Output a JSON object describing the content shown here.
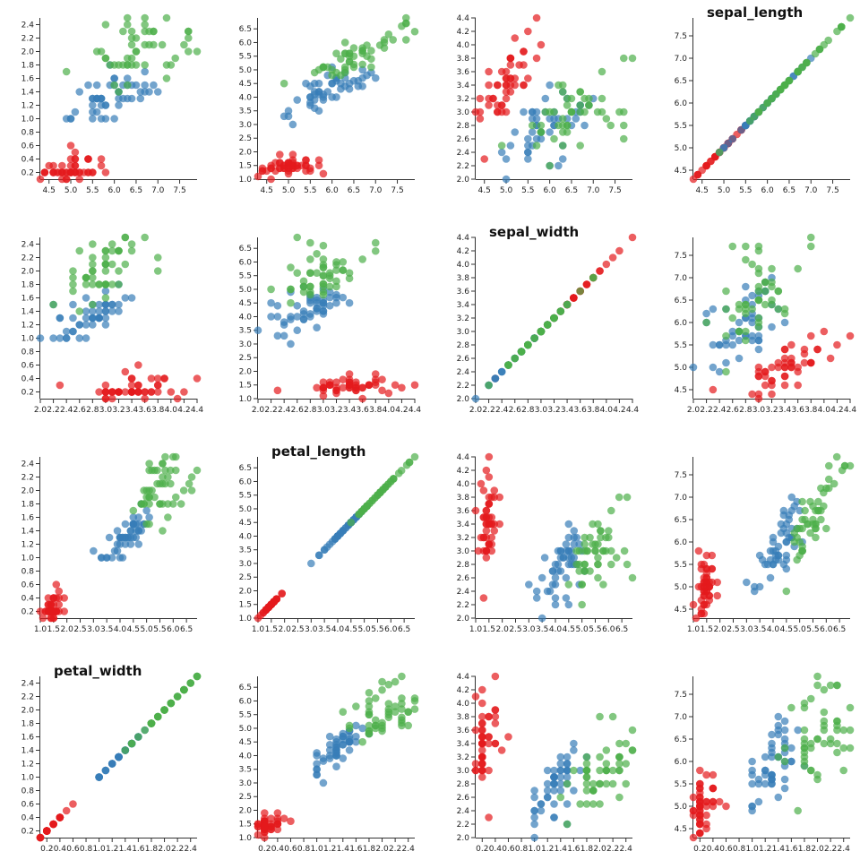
{
  "chart_data": {
    "type": "scatter-matrix",
    "dimensions": [
      {
        "name": "sepal_length",
        "lim": [
          4.3,
          7.9
        ],
        "ticks": [
          4.5,
          {
            "value": 5,
            "label": "5.0"
          },
          5.5,
          {
            "value": 6,
            "label": "6.0"
          },
          6.5,
          {
            "value": 7,
            "label": "7.0"
          },
          7.5
        ]
      },
      {
        "name": "sepal_width",
        "lim": [
          2.0,
          4.4
        ],
        "ticks": [
          {
            "value": 2,
            "label": "2.0"
          },
          2.2,
          2.4,
          2.6,
          2.8,
          {
            "value": 3,
            "label": "3.0"
          },
          3.2,
          3.4,
          3.6,
          3.8,
          {
            "value": 4,
            "label": "4.0"
          },
          4.2,
          4.4
        ]
      },
      {
        "name": "petal_length",
        "lim": [
          1.0,
          6.9
        ],
        "ticks": [
          {
            "value": 1,
            "label": "1.0"
          },
          1.5,
          {
            "value": 2,
            "label": "2.0"
          },
          2.5,
          {
            "value": 3,
            "label": "3.0"
          },
          3.5,
          {
            "value": 4,
            "label": "4.0"
          },
          4.5,
          {
            "value": 5,
            "label": "5.0"
          },
          5.5,
          {
            "value": 6,
            "label": "6.0"
          },
          6.5
        ]
      },
      {
        "name": "petal_width",
        "lim": [
          0.1,
          2.5
        ],
        "ticks": [
          0.2,
          0.4,
          0.6,
          0.8,
          {
            "value": 1,
            "label": "1.0"
          },
          1.2,
          1.4,
          1.6,
          1.8,
          {
            "value": 2,
            "label": "2.0"
          },
          2.2,
          2.4
        ]
      }
    ],
    "series": [
      {
        "color": "#e41a1c",
        "values": [
          [
            5.1,
            3.5,
            1.4,
            0.2
          ],
          [
            4.9,
            3.0,
            1.4,
            0.2
          ],
          [
            4.7,
            3.2,
            1.3,
            0.2
          ],
          [
            4.6,
            3.1,
            1.5,
            0.2
          ],
          [
            5.0,
            3.6,
            1.4,
            0.2
          ],
          [
            5.4,
            3.9,
            1.7,
            0.4
          ],
          [
            4.6,
            3.4,
            1.4,
            0.3
          ],
          [
            5.0,
            3.4,
            1.5,
            0.2
          ],
          [
            4.4,
            2.9,
            1.4,
            0.2
          ],
          [
            4.9,
            3.1,
            1.5,
            0.1
          ],
          [
            5.4,
            3.7,
            1.5,
            0.2
          ],
          [
            4.8,
            3.4,
            1.6,
            0.2
          ],
          [
            4.8,
            3.0,
            1.4,
            0.1
          ],
          [
            4.3,
            3.0,
            1.1,
            0.1
          ],
          [
            5.8,
            4.0,
            1.2,
            0.2
          ],
          [
            5.7,
            4.4,
            1.5,
            0.4
          ],
          [
            5.4,
            3.9,
            1.3,
            0.4
          ],
          [
            5.1,
            3.5,
            1.4,
            0.3
          ],
          [
            5.7,
            3.8,
            1.7,
            0.3
          ],
          [
            5.1,
            3.8,
            1.5,
            0.3
          ],
          [
            5.4,
            3.4,
            1.7,
            0.2
          ],
          [
            5.1,
            3.7,
            1.5,
            0.4
          ],
          [
            4.6,
            3.6,
            1.0,
            0.2
          ],
          [
            5.1,
            3.3,
            1.7,
            0.5
          ],
          [
            4.8,
            3.4,
            1.9,
            0.2
          ],
          [
            5.0,
            3.0,
            1.6,
            0.2
          ],
          [
            5.0,
            3.4,
            1.6,
            0.4
          ],
          [
            5.2,
            3.5,
            1.5,
            0.2
          ],
          [
            5.2,
            3.4,
            1.4,
            0.2
          ],
          [
            4.7,
            3.2,
            1.6,
            0.2
          ],
          [
            4.8,
            3.1,
            1.6,
            0.2
          ],
          [
            5.4,
            3.4,
            1.5,
            0.4
          ],
          [
            5.2,
            4.1,
            1.5,
            0.1
          ],
          [
            5.5,
            4.2,
            1.4,
            0.2
          ],
          [
            4.9,
            3.1,
            1.5,
            0.2
          ],
          [
            5.0,
            3.2,
            1.2,
            0.2
          ],
          [
            5.5,
            3.5,
            1.3,
            0.2
          ],
          [
            4.9,
            3.6,
            1.4,
            0.1
          ],
          [
            4.4,
            3.0,
            1.3,
            0.2
          ],
          [
            5.1,
            3.4,
            1.5,
            0.2
          ],
          [
            5.0,
            3.5,
            1.3,
            0.3
          ],
          [
            4.5,
            2.3,
            1.3,
            0.3
          ],
          [
            4.4,
            3.2,
            1.3,
            0.2
          ],
          [
            5.0,
            3.5,
            1.6,
            0.6
          ],
          [
            5.1,
            3.8,
            1.9,
            0.4
          ],
          [
            4.8,
            3.0,
            1.4,
            0.3
          ],
          [
            5.1,
            3.8,
            1.6,
            0.2
          ],
          [
            4.6,
            3.2,
            1.4,
            0.2
          ],
          [
            5.3,
            3.7,
            1.5,
            0.2
          ],
          [
            5.0,
            3.3,
            1.4,
            0.2
          ]
        ]
      },
      {
        "color": "#377eb8",
        "values": [
          [
            7.0,
            3.2,
            4.7,
            1.4
          ],
          [
            6.4,
            3.2,
            4.5,
            1.5
          ],
          [
            6.9,
            3.1,
            4.9,
            1.5
          ],
          [
            5.5,
            2.3,
            4.0,
            1.3
          ],
          [
            6.5,
            2.8,
            4.6,
            1.5
          ],
          [
            5.7,
            2.8,
            4.5,
            1.3
          ],
          [
            6.3,
            3.3,
            4.7,
            1.6
          ],
          [
            4.9,
            2.4,
            3.3,
            1.0
          ],
          [
            6.6,
            2.9,
            4.6,
            1.3
          ],
          [
            5.2,
            2.7,
            3.9,
            1.4
          ],
          [
            5.0,
            2.0,
            3.5,
            1.0
          ],
          [
            5.9,
            3.0,
            4.2,
            1.5
          ],
          [
            6.0,
            2.2,
            4.0,
            1.0
          ],
          [
            6.1,
            2.9,
            4.7,
            1.4
          ],
          [
            5.6,
            2.9,
            3.6,
            1.3
          ],
          [
            6.7,
            3.1,
            4.4,
            1.4
          ],
          [
            5.6,
            3.0,
            4.5,
            1.5
          ],
          [
            5.8,
            2.7,
            4.1,
            1.0
          ],
          [
            6.2,
            2.2,
            4.5,
            1.5
          ],
          [
            5.6,
            2.5,
            3.9,
            1.1
          ],
          [
            5.9,
            3.2,
            4.8,
            1.8
          ],
          [
            6.1,
            2.8,
            4.0,
            1.3
          ],
          [
            6.3,
            2.5,
            4.9,
            1.5
          ],
          [
            6.1,
            2.8,
            4.7,
            1.2
          ],
          [
            6.4,
            2.9,
            4.3,
            1.3
          ],
          [
            6.6,
            3.0,
            4.4,
            1.4
          ],
          [
            6.8,
            2.8,
            4.8,
            1.4
          ],
          [
            6.7,
            3.0,
            5.0,
            1.7
          ],
          [
            6.0,
            2.9,
            4.5,
            1.5
          ],
          [
            5.7,
            2.6,
            3.5,
            1.0
          ],
          [
            5.5,
            2.4,
            3.8,
            1.1
          ],
          [
            5.5,
            2.4,
            3.7,
            1.0
          ],
          [
            5.8,
            2.7,
            3.9,
            1.2
          ],
          [
            6.0,
            2.7,
            5.1,
            1.6
          ],
          [
            5.4,
            3.0,
            4.5,
            1.5
          ],
          [
            6.0,
            3.4,
            4.5,
            1.6
          ],
          [
            6.7,
            3.1,
            4.7,
            1.5
          ],
          [
            6.3,
            2.3,
            4.4,
            1.3
          ],
          [
            5.6,
            3.0,
            4.1,
            1.3
          ],
          [
            5.5,
            2.5,
            4.0,
            1.3
          ],
          [
            5.5,
            2.6,
            4.4,
            1.2
          ],
          [
            6.1,
            3.0,
            4.6,
            1.4
          ],
          [
            5.8,
            2.6,
            4.0,
            1.2
          ],
          [
            5.0,
            2.3,
            3.3,
            1.0
          ],
          [
            5.6,
            2.7,
            4.2,
            1.3
          ],
          [
            5.7,
            3.0,
            4.2,
            1.2
          ],
          [
            5.7,
            2.9,
            4.2,
            1.3
          ],
          [
            6.2,
            2.9,
            4.3,
            1.3
          ],
          [
            5.1,
            2.5,
            3.0,
            1.1
          ],
          [
            5.7,
            2.8,
            4.1,
            1.3
          ]
        ]
      },
      {
        "color": "#4daf4a",
        "values": [
          [
            6.3,
            3.3,
            6.0,
            2.5
          ],
          [
            5.8,
            2.7,
            5.1,
            1.9
          ],
          [
            7.1,
            3.0,
            5.9,
            2.1
          ],
          [
            6.3,
            2.9,
            5.6,
            1.8
          ],
          [
            6.5,
            3.0,
            5.8,
            2.2
          ],
          [
            7.6,
            3.0,
            6.6,
            2.1
          ],
          [
            4.9,
            2.5,
            4.5,
            1.7
          ],
          [
            7.3,
            2.9,
            6.3,
            1.8
          ],
          [
            6.7,
            2.5,
            5.8,
            1.8
          ],
          [
            7.2,
            3.6,
            6.1,
            2.5
          ],
          [
            6.5,
            3.2,
            5.1,
            2.0
          ],
          [
            6.4,
            2.7,
            5.3,
            1.9
          ],
          [
            6.8,
            3.0,
            5.5,
            2.1
          ],
          [
            5.7,
            2.5,
            5.0,
            2.0
          ],
          [
            5.8,
            2.8,
            5.1,
            2.4
          ],
          [
            6.4,
            3.2,
            5.3,
            2.3
          ],
          [
            6.5,
            3.0,
            5.5,
            1.8
          ],
          [
            7.7,
            3.8,
            6.7,
            2.2
          ],
          [
            7.7,
            2.6,
            6.9,
            2.3
          ],
          [
            6.0,
            2.2,
            5.0,
            1.5
          ],
          [
            6.9,
            3.2,
            5.7,
            2.3
          ],
          [
            5.6,
            2.8,
            4.9,
            2.0
          ],
          [
            7.7,
            2.8,
            6.7,
            2.0
          ],
          [
            6.3,
            2.7,
            4.9,
            1.8
          ],
          [
            6.7,
            3.3,
            5.7,
            2.1
          ],
          [
            7.2,
            3.2,
            6.0,
            1.8
          ],
          [
            6.2,
            2.8,
            4.8,
            1.8
          ],
          [
            6.1,
            3.0,
            4.9,
            1.8
          ],
          [
            6.4,
            2.8,
            5.6,
            2.1
          ],
          [
            7.2,
            3.0,
            5.8,
            1.6
          ],
          [
            7.4,
            2.8,
            6.1,
            1.9
          ],
          [
            7.9,
            3.8,
            6.4,
            2.0
          ],
          [
            6.4,
            2.8,
            5.6,
            2.2
          ],
          [
            6.3,
            2.8,
            5.1,
            1.5
          ],
          [
            6.1,
            2.6,
            5.6,
            1.4
          ],
          [
            7.7,
            3.0,
            6.1,
            2.3
          ],
          [
            6.3,
            3.4,
            5.6,
            2.4
          ],
          [
            6.4,
            3.1,
            5.5,
            1.8
          ],
          [
            6.0,
            3.0,
            4.8,
            1.8
          ],
          [
            6.9,
            3.1,
            5.4,
            2.1
          ],
          [
            6.7,
            3.1,
            5.6,
            2.4
          ],
          [
            6.9,
            3.1,
            5.1,
            2.3
          ],
          [
            5.8,
            2.7,
            5.1,
            1.9
          ],
          [
            6.8,
            3.2,
            5.9,
            2.3
          ],
          [
            6.7,
            3.3,
            5.7,
            2.5
          ],
          [
            6.7,
            3.0,
            5.2,
            2.3
          ],
          [
            6.3,
            2.5,
            5.0,
            1.9
          ],
          [
            6.5,
            3.0,
            5.2,
            2.0
          ],
          [
            6.2,
            3.4,
            5.4,
            2.3
          ],
          [
            5.9,
            3.0,
            5.1,
            1.8
          ]
        ]
      }
    ]
  }
}
